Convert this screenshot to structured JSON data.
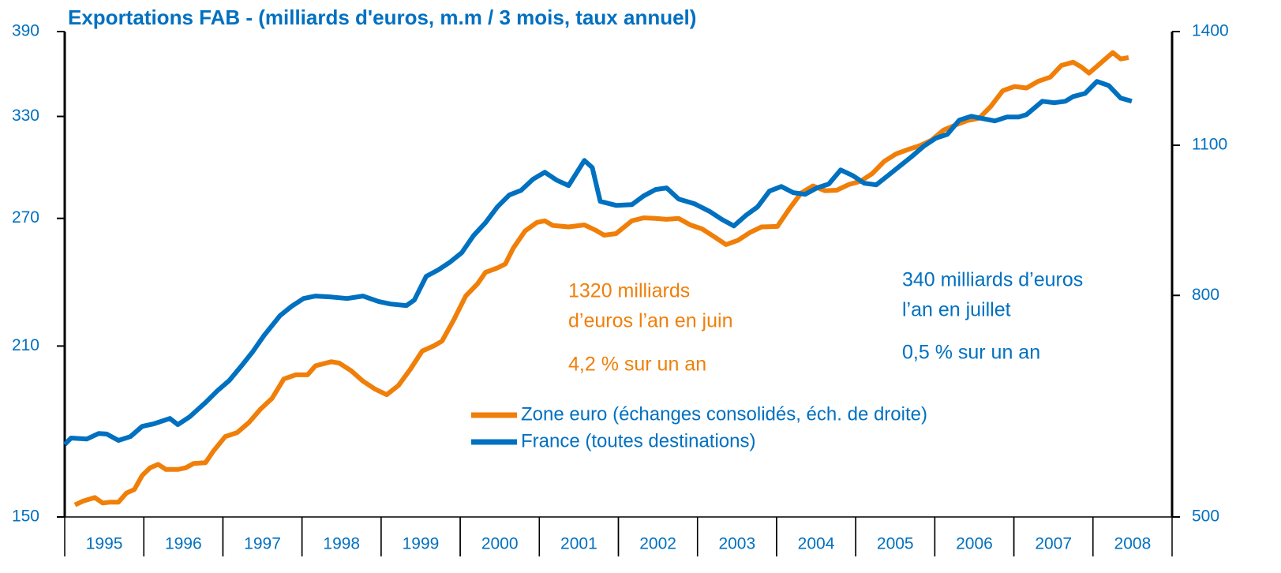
{
  "chart_data": {
    "type": "line",
    "title": "Exportations FAB - (milliards d'euros, m.m / 3 mois, taux annuel)",
    "log_scale": true,
    "xlim": [
      1995,
      2009
    ],
    "xticks": [
      {
        "value": 1995.5,
        "label": "1995"
      },
      {
        "value": 1996.5,
        "label": "1996"
      },
      {
        "value": 1997.5,
        "label": "1997"
      },
      {
        "value": 1998.5,
        "label": "1998"
      },
      {
        "value": 1999.5,
        "label": "1999"
      },
      {
        "value": 2000.5,
        "label": "2000"
      },
      {
        "value": 2001.5,
        "label": "2001"
      },
      {
        "value": 2002.5,
        "label": "2002"
      },
      {
        "value": 2003.5,
        "label": "2003"
      },
      {
        "value": 2004.5,
        "label": "2004"
      },
      {
        "value": 2005.5,
        "label": "2005"
      },
      {
        "value": 2006.5,
        "label": "2006"
      },
      {
        "value": 2007.5,
        "label": "2007"
      },
      {
        "value": 2008.5,
        "label": "2008"
      }
    ],
    "ylim": [
      150,
      390
    ],
    "yticks": [
      150,
      210,
      270,
      330,
      390
    ],
    "y2lim": [
      500,
      1400
    ],
    "y2ticks": [
      500,
      800,
      1100,
      1400
    ],
    "series": [
      {
        "name": "Zone euro (échanges consolidés, éch. de droite)",
        "color": "#f07f09",
        "axis": "y2",
        "x": [
          1995.13,
          1995.23,
          1995.38,
          1995.48,
          1995.58,
          1995.68,
          1995.78,
          1995.88,
          1995.98,
          1996.08,
          1996.18,
          1996.28,
          1996.43,
          1996.53,
          1996.63,
          1996.78,
          1996.88,
          1997.03,
          1997.18,
          1997.33,
          1997.48,
          1997.62,
          1997.77,
          1997.92,
          1998.07,
          1998.17,
          1998.37,
          1998.47,
          1998.62,
          1998.77,
          1998.92,
          1999.07,
          1999.22,
          1999.37,
          1999.52,
          1999.67,
          1999.77,
          1999.92,
          2000.07,
          2000.22,
          2000.32,
          2000.47,
          2000.57,
          2000.67,
          2000.82,
          2000.97,
          2001.07,
          2001.17,
          2001.37,
          2001.57,
          2001.72,
          2001.82,
          2001.97,
          2002.17,
          2002.32,
          2002.47,
          2002.61,
          2002.76,
          2002.91,
          2003.06,
          2003.21,
          2003.36,
          2003.51,
          2003.66,
          2003.81,
          2004.01,
          2004.16,
          2004.31,
          2004.46,
          2004.61,
          2004.76,
          2004.91,
          2005.06,
          2005.21,
          2005.36,
          2005.51,
          2005.66,
          2005.81,
          2005.96,
          2006.11,
          2006.26,
          2006.41,
          2006.56,
          2006.71,
          2006.86,
          2007.01,
          2007.16,
          2007.31,
          2007.46,
          2007.6,
          2007.75,
          2007.85,
          2007.95,
          2008.1,
          2008.25,
          2008.35,
          2008.45
        ],
        "values": [
          513,
          517,
          521,
          515,
          516,
          516,
          526,
          530,
          546,
          555,
          559,
          553,
          553,
          555,
          560,
          561,
          575,
          593,
          598,
          611,
          629,
          643,
          670,
          676,
          676,
          689,
          695,
          693,
          682,
          667,
          656,
          648,
          661,
          684,
          711,
          719,
          726,
          760,
          799,
          820,
          840,
          848,
          855,
          884,
          917,
          934,
          937,
          928,
          925,
          929,
          918,
          909,
          912,
          937,
          943,
          942,
          940,
          942,
          929,
          921,
          906,
          891,
          899,
          914,
          925,
          926,
          961,
          994,
          1009,
          999,
          1000,
          1012,
          1019,
          1036,
          1063,
          1080,
          1090,
          1099,
          1112,
          1136,
          1148,
          1159,
          1165,
          1195,
          1235,
          1246,
          1242,
          1260,
          1271,
          1303,
          1312,
          1299,
          1282,
          1310,
          1339,
          1321,
          1325
        ]
      },
      {
        "name": "France (toutes destinations)",
        "color": "#0070c0",
        "x": [
          1995.0,
          1995.08,
          1995.28,
          1995.43,
          1995.53,
          1995.68,
          1995.83,
          1995.98,
          1996.13,
          1996.33,
          1996.43,
          1996.58,
          1996.78,
          1996.93,
          1997.08,
          1997.23,
          1997.38,
          1997.52,
          1997.72,
          1997.87,
          1998.02,
          1998.17,
          1998.37,
          1998.57,
          1998.77,
          1998.97,
          1999.12,
          1999.32,
          1999.42,
          1999.57,
          1999.72,
          1999.87,
          2000.02,
          2000.17,
          2000.32,
          2000.47,
          2000.62,
          2000.77,
          2000.92,
          2001.07,
          2001.22,
          2001.37,
          2001.57,
          2001.67,
          2001.77,
          2001.97,
          2002.17,
          2002.32,
          2002.47,
          2002.61,
          2002.76,
          2002.96,
          2003.16,
          2003.31,
          2003.46,
          2003.61,
          2003.76,
          2003.91,
          2004.06,
          2004.21,
          2004.36,
          2004.51,
          2004.66,
          2004.81,
          2004.96,
          2005.11,
          2005.26,
          2005.41,
          2005.56,
          2005.71,
          2005.86,
          2006.01,
          2006.16,
          2006.31,
          2006.46,
          2006.61,
          2006.76,
          2006.91,
          2007.06,
          2007.16,
          2007.36,
          2007.51,
          2007.65,
          2007.75,
          2007.9,
          2008.05,
          2008.2,
          2008.35,
          2008.49
        ],
        "values": [
          173.0,
          175.2,
          174.9,
          176.8,
          176.6,
          174.4,
          175.7,
          179.3,
          180.2,
          182.1,
          179.9,
          182.7,
          187.9,
          192.3,
          196.2,
          201.8,
          207.8,
          214.4,
          222.9,
          227.1,
          230.6,
          231.7,
          231.3,
          230.6,
          231.7,
          229.2,
          228.1,
          227.4,
          229.9,
          240.9,
          243.9,
          247.7,
          252.4,
          261.1,
          267.7,
          276.2,
          282.7,
          285.3,
          291.6,
          295.7,
          291.1,
          288.0,
          302.6,
          298.4,
          279.2,
          277.0,
          277.4,
          282.2,
          285.8,
          286.7,
          280.5,
          277.9,
          273.6,
          269.4,
          266.0,
          271.5,
          276.2,
          284.9,
          287.5,
          284.0,
          283.1,
          286.7,
          288.9,
          297.0,
          293.8,
          289.3,
          288.4,
          293.8,
          299.4,
          305.0,
          311.2,
          316.1,
          318.6,
          327.6,
          330.1,
          328.6,
          327.1,
          329.6,
          329.6,
          331.2,
          340.0,
          339.0,
          340.0,
          343.2,
          345.3,
          353.5,
          350.7,
          342.1,
          340.0
        ]
      }
    ],
    "annotations": [
      {
        "text": "1320 milliards",
        "color": "#f07f09"
      },
      {
        "text": "d’euros l’an en juin",
        "color": "#f07f09"
      },
      {
        "text": "4,2 % sur un an",
        "color": "#f07f09"
      },
      {
        "text": "340 milliards d’euros",
        "color": "#0070c0"
      },
      {
        "text": "l’an en juillet",
        "color": "#0070c0"
      },
      {
        "text": "0,5 % sur un an",
        "color": "#0070c0"
      }
    ]
  }
}
